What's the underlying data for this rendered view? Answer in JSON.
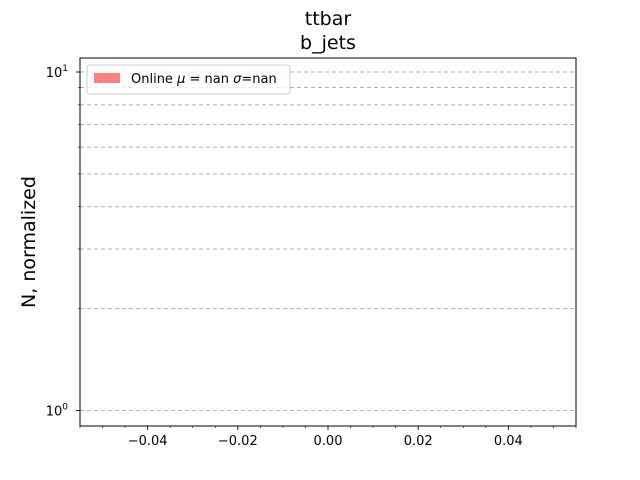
{
  "chart_data": {
    "type": "bar",
    "title": "ttbar",
    "subtitle": "b_jets",
    "xlabel": "",
    "ylabel": "N, normalized",
    "xlim": [
      -0.055,
      0.055
    ],
    "ylim": [
      0.9,
      11.0
    ],
    "yscale": "log",
    "xticks": [
      -0.04,
      -0.02,
      0.0,
      0.02,
      0.04
    ],
    "xtick_labels": [
      "−0.04",
      "−0.02",
      "0.00",
      "0.02",
      "0.04"
    ],
    "yticks_major": [
      1,
      10
    ],
    "ytick_labels": [
      {
        "base": "10",
        "exp": "0"
      },
      {
        "base": "10",
        "exp": "1"
      }
    ],
    "y_grid_values": [
      1,
      2,
      3,
      4,
      5,
      6,
      7,
      8,
      9,
      10
    ],
    "grid": "y",
    "legend_position": "upper left",
    "series": [
      {
        "name": "Online μ = nan σ=nan",
        "label_parts": {
          "prefix": "Online ",
          "mu": "μ",
          "mid": " = nan ",
          "sigma": "σ",
          "suffix": "=nan"
        },
        "color": "#ff8080",
        "values": []
      }
    ]
  }
}
